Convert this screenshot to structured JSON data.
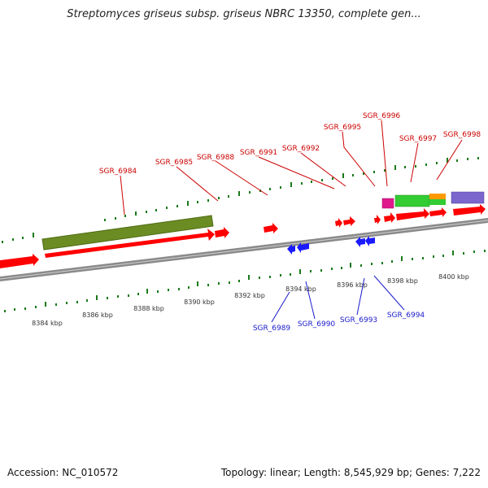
{
  "title": "Streptomyces griseus subsp. griseus NBRC 13350, complete gen...",
  "footer": {
    "accession": "Accession: NC_010572",
    "topology": "Topology: linear; Length: 8,545,929 bp; Genes: 7,222"
  },
  "colors": {
    "forward_gene": "#ff0000",
    "reverse_gene": "#1a1aff",
    "forward_label": "#cc0000",
    "reverse_label": "#1a1acc",
    "tick": "#1a7a1a",
    "axis_line": "#8a8a8a"
  },
  "kbp_labels": [
    "8384 kbp",
    "8386 kbp",
    "8388 kbp",
    "8390 kbp",
    "8392 kbp",
    "8394 kbp",
    "8396 kbp",
    "8398 kbp",
    "8400 kbp"
  ],
  "forward_gene_labels": [
    "SGR_6984",
    "SGR_6985",
    "SGR_6988",
    "SGR_6991",
    "SGR_6992",
    "SGR_6995",
    "SGR_6996",
    "SGR_6997",
    "SGR_6998"
  ],
  "reverse_gene_labels": [
    "SGR_6989",
    "SGR_6990",
    "SGR_6993",
    "SGR_6994"
  ],
  "feature_colors": [
    "#6b8c23",
    "#e0198c",
    "#33cc33",
    "#ff9900",
    "#7a66cc"
  ]
}
